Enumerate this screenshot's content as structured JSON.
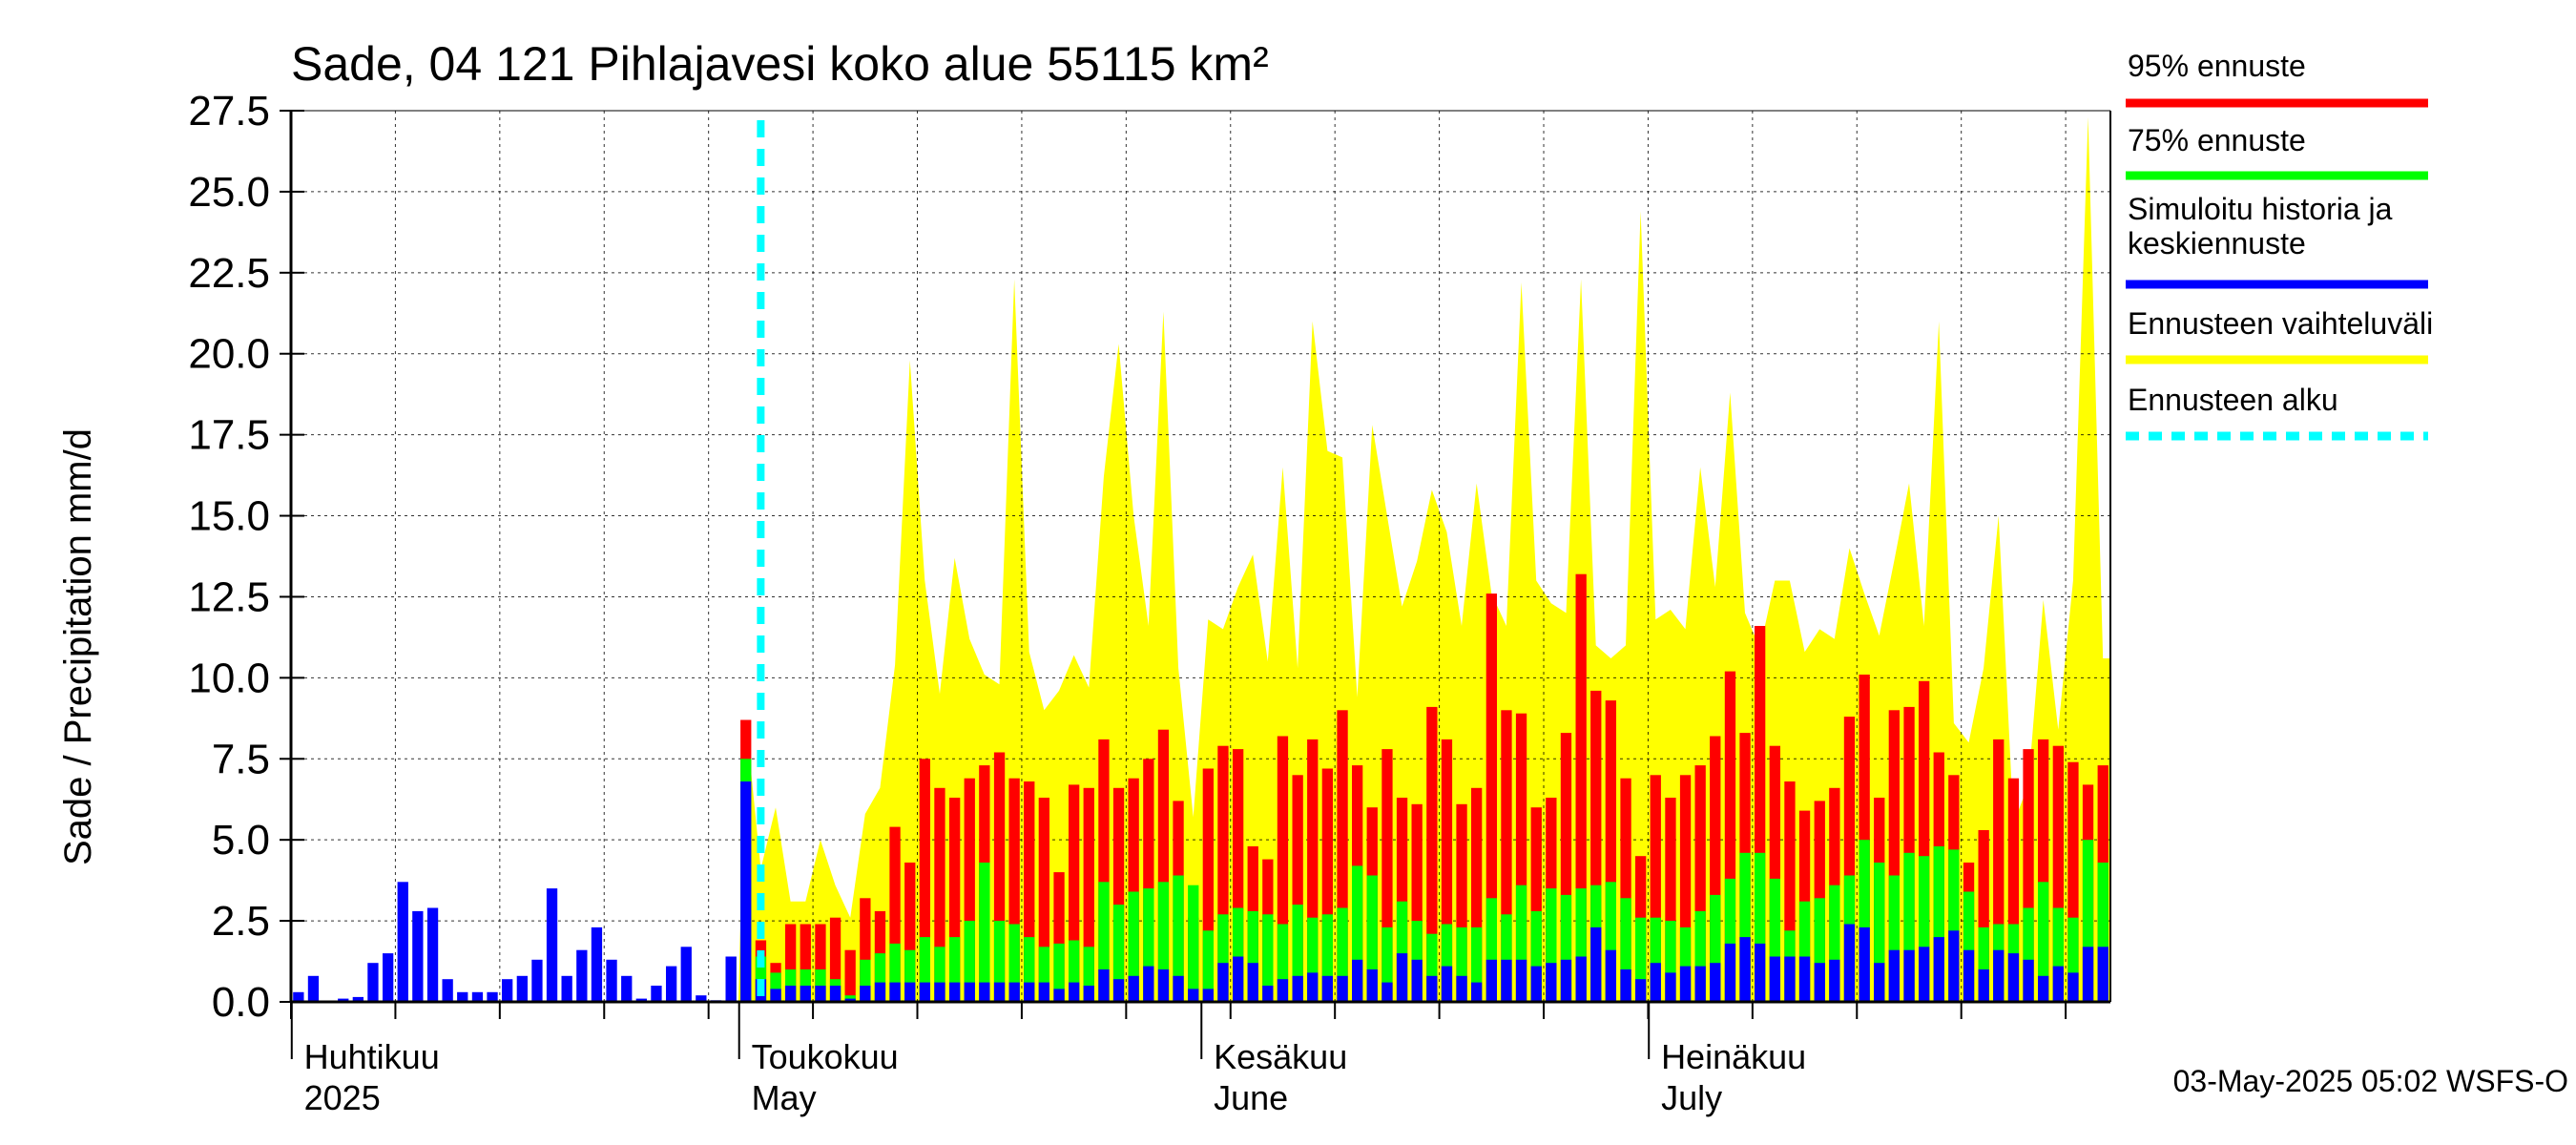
{
  "chart_data": {
    "type": "bar",
    "title": "Sade, 04 121 Pihlajavesi koko alue 55115 km²",
    "ylabel": "Sade / Precipitation   mm/d",
    "ylim": [
      0,
      27.5
    ],
    "yticks": [
      "0.0",
      "2.5",
      "5.0",
      "7.5",
      "10.0",
      "12.5",
      "15.0",
      "17.5",
      "20.0",
      "22.5",
      "25.0",
      "27.5"
    ],
    "grid": true,
    "legend_position": "right",
    "x_labels": [
      {
        "fi": "Huhtikuu",
        "en": "2025",
        "day": 1
      },
      {
        "fi": "Toukokuu",
        "en": "May",
        "day": 31
      },
      {
        "fi": "Kesäkuu",
        "en": "June",
        "day": 62
      },
      {
        "fi": "Heinäkuu",
        "en": "July",
        "day": 92
      }
    ],
    "start_date": "2025-04-01",
    "forecast_start_day": 31.5,
    "footer": "03-May-2025 05:02 WSFS-O",
    "legend": [
      {
        "label": "95% ennuste",
        "color": "#ff0000",
        "style": "solid"
      },
      {
        "label": "75% ennuste",
        "color": "#00ff00",
        "style": "solid"
      },
      {
        "label": "Simuloitu historia ja keskiennuste",
        "color": "#0000ff",
        "style": "solid"
      },
      {
        "label": "Ennusteen vaihteluväli",
        "color": "#ffff00",
        "style": "solid"
      },
      {
        "label": "Ennusteen alku",
        "color": "#00ffff",
        "style": "dashed"
      }
    ],
    "series": [
      {
        "name": "Simuloitu historia ja keskiennuste",
        "color": "#0000ff",
        "values": [
          0.3,
          0.8,
          0.0,
          0.1,
          0.15,
          1.2,
          1.5,
          3.7,
          2.8,
          2.9,
          0.7,
          0.3,
          0.3,
          0.3,
          0.7,
          0.8,
          1.3,
          3.5,
          0.8,
          1.6,
          2.3,
          1.3,
          0.8,
          0.1,
          0.5,
          1.1,
          1.7,
          0.2,
          0.05,
          1.4,
          6.8,
          0.7,
          0.4,
          0.5,
          0.5,
          0.5,
          0.5,
          0.1,
          0.5,
          0.6,
          0.6,
          0.6,
          0.6,
          0.6,
          0.6,
          0.6,
          0.6,
          0.6,
          0.6,
          0.6,
          0.6,
          0.4,
          0.6,
          0.5,
          1.0,
          0.7,
          0.8,
          1.1,
          1.0,
          0.8,
          0.4,
          0.4,
          1.2,
          1.4,
          1.2,
          0.5,
          0.7,
          0.8,
          0.9,
          0.8,
          0.8,
          1.3,
          1.0,
          0.6,
          1.5,
          1.3,
          0.8,
          1.1,
          0.8,
          0.6,
          1.3,
          1.3,
          1.3,
          1.1,
          1.2,
          1.3,
          1.4,
          2.3,
          1.6,
          1.0,
          0.7,
          1.2,
          0.9,
          1.1,
          1.1,
          1.2,
          1.8,
          2.0,
          1.8,
          1.4,
          1.4,
          1.4,
          1.2,
          1.3,
          2.4,
          2.3,
          1.2,
          1.6,
          1.6,
          1.7,
          2.0,
          2.2,
          1.6,
          1.0,
          1.6,
          1.5,
          1.3,
          0.8,
          1.1,
          0.9,
          1.7,
          1.7
        ]
      },
      {
        "name": "75% ennuste",
        "color": "#00ff00",
        "values": [
          0,
          0,
          0,
          0,
          0,
          0,
          0,
          0,
          0,
          0,
          0,
          0,
          0,
          0,
          0,
          0,
          0,
          0,
          0,
          0,
          0,
          0,
          0,
          0,
          0,
          0,
          0,
          0,
          0,
          1.4,
          7.5,
          1.4,
          0.9,
          1.0,
          1.0,
          1.0,
          0.7,
          0.2,
          1.3,
          1.5,
          1.8,
          1.6,
          2.0,
          1.7,
          2.0,
          2.5,
          4.3,
          2.5,
          2.4,
          2.0,
          1.7,
          1.8,
          1.9,
          1.7,
          3.7,
          3.0,
          3.4,
          3.5,
          3.7,
          3.9,
          3.6,
          2.2,
          2.7,
          2.9,
          2.8,
          2.7,
          2.4,
          3.0,
          2.6,
          2.7,
          2.9,
          4.2,
          3.9,
          2.3,
          3.1,
          2.5,
          2.1,
          2.4,
          2.3,
          2.3,
          3.2,
          2.7,
          3.6,
          2.8,
          3.5,
          3.3,
          3.5,
          3.6,
          3.7,
          3.2,
          2.6,
          2.6,
          2.5,
          2.3,
          2.8,
          3.3,
          3.8,
          4.6,
          4.6,
          3.8,
          2.2,
          3.1,
          3.2,
          3.6,
          3.9,
          5.0,
          4.3,
          3.9,
          4.6,
          4.5,
          4.8,
          4.7,
          3.4,
          2.3,
          2.4,
          2.4,
          2.9,
          3.7,
          2.9,
          2.6,
          5.0,
          4.3
        ]
      },
      {
        "name": "95% ennuste",
        "color": "#ff0000",
        "values": [
          0,
          0,
          0,
          0,
          0,
          0,
          0,
          0,
          0,
          0,
          0,
          0,
          0,
          0,
          0,
          0,
          0,
          0,
          0,
          0,
          0,
          0,
          0,
          0,
          0,
          0,
          0,
          0,
          0,
          1.4,
          8.7,
          1.9,
          1.2,
          2.4,
          2.4,
          2.4,
          2.6,
          1.6,
          3.2,
          2.8,
          5.4,
          4.3,
          7.5,
          6.6,
          6.3,
          6.9,
          7.3,
          7.7,
          6.9,
          6.8,
          6.3,
          4.0,
          6.7,
          6.6,
          8.1,
          6.6,
          6.9,
          7.5,
          8.4,
          6.2,
          2.6,
          7.2,
          7.9,
          7.8,
          4.8,
          4.4,
          8.2,
          7.0,
          8.1,
          7.2,
          9.0,
          7.3,
          6.0,
          7.8,
          6.3,
          6.1,
          9.1,
          8.1,
          6.1,
          6.6,
          12.6,
          9.0,
          8.9,
          6.0,
          6.3,
          8.3,
          13.2,
          9.6,
          9.3,
          6.9,
          4.5,
          7.0,
          6.3,
          7.0,
          7.3,
          8.2,
          10.2,
          8.3,
          11.6,
          7.9,
          6.8,
          5.9,
          6.2,
          6.6,
          8.8,
          10.1,
          6.3,
          9.0,
          9.1,
          9.9,
          7.7,
          7.0,
          4.3,
          5.3,
          8.1,
          6.9,
          7.8,
          8.1,
          7.9,
          7.4,
          6.7,
          7.3
        ]
      },
      {
        "name": "Ennusteen vaihteluväli",
        "color": "#ffff00",
        "values": [
          0,
          0,
          0,
          0,
          0,
          0,
          0,
          0,
          0,
          0,
          0,
          0,
          0,
          0,
          0,
          0,
          0,
          0,
          0,
          0,
          0,
          0,
          0,
          0,
          0,
          0,
          0,
          0,
          0,
          1.4,
          8.7,
          4.1,
          6.0,
          3.1,
          3.1,
          5.0,
          3.6,
          2.6,
          5.8,
          6.6,
          10.4,
          19.8,
          13.0,
          9.5,
          13.7,
          11.2,
          10.1,
          9.8,
          22.3,
          10.8,
          9.0,
          9.6,
          10.7,
          9.7,
          16.2,
          20.3,
          15.0,
          11.6,
          21.3,
          10.3,
          5.7,
          11.8,
          11.5,
          12.8,
          13.8,
          10.5,
          16.5,
          10.3,
          21.0,
          17.0,
          16.8,
          9.4,
          17.8,
          15.0,
          12.2,
          13.6,
          15.8,
          14.5,
          11.6,
          16.0,
          12.6,
          11.6,
          22.2,
          13.0,
          12.3,
          12.0,
          22.3,
          11.0,
          10.6,
          11.0,
          24.4,
          11.8,
          12.1,
          11.5,
          16.5,
          12.8,
          18.8,
          12.0,
          10.9,
          13.0,
          13.0,
          10.8,
          11.5,
          11.2,
          14.0,
          12.6,
          11.3,
          13.6,
          16.0,
          11.6,
          21.0,
          8.6,
          8.0,
          10.3,
          15.0,
          5.5,
          6.7,
          12.4,
          8.4,
          13.0,
          27.3,
          10.6,
          10.6
        ]
      }
    ]
  }
}
